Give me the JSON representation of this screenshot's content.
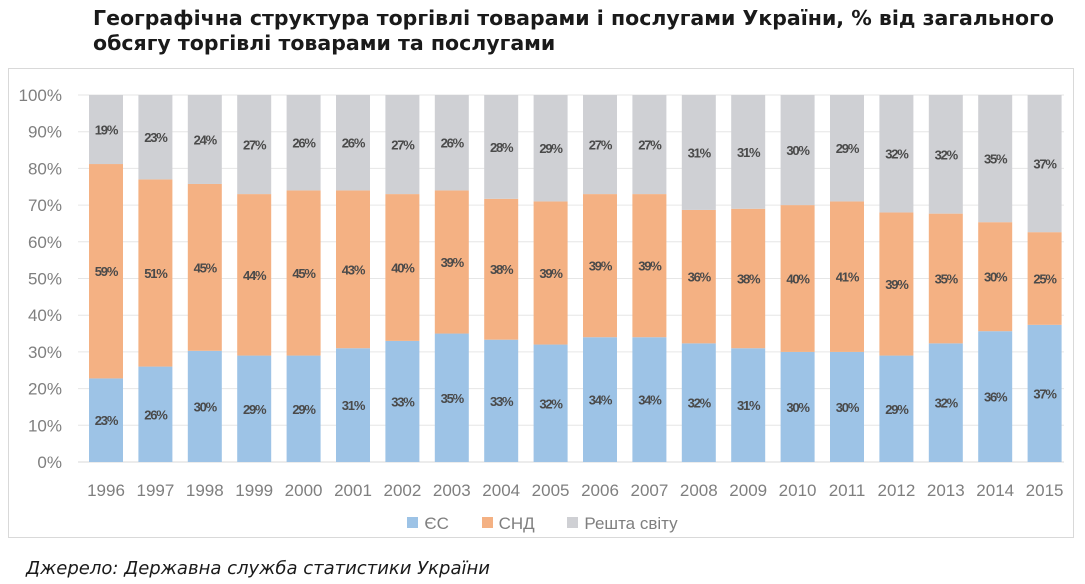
{
  "title": "Географічна структура торгівлі товарами і послугами України, % від загального обсягу торгівлі товарами та послугами",
  "source": "Джерело: Державна служба статистики України",
  "colors": {
    "eu": "#9dc3e6",
    "cis": "#f4b183",
    "rest": "#cfd0d4",
    "grid": "#e6e6e6",
    "axis_text": "#7f7f7f",
    "label_text": "#4a4a4a"
  },
  "chart_data": {
    "type": "bar",
    "stacked": true,
    "percent_stacked": true,
    "title": "Географічна структура торгівлі товарами і послугами України, % від загального обсягу торгівлі товарами та послугами",
    "xlabel": "",
    "ylabel": "",
    "ylim": [
      0,
      100
    ],
    "y_ticks": [
      "0%",
      "10%",
      "20%",
      "30%",
      "40%",
      "50%",
      "60%",
      "70%",
      "80%",
      "90%",
      "100%"
    ],
    "grid": true,
    "legend_position": "bottom",
    "categories": [
      "1996",
      "1997",
      "1998",
      "1999",
      "2000",
      "2001",
      "2002",
      "2003",
      "2004",
      "2005",
      "2006",
      "2007",
      "2008",
      "2009",
      "2010",
      "2011",
      "2012",
      "2013",
      "2014",
      "2015"
    ],
    "series": [
      {
        "name": "ЄС",
        "key": "eu",
        "values": [
          23,
          26,
          30,
          29,
          29,
          31,
          33,
          35,
          33,
          32,
          34,
          34,
          32,
          31,
          30,
          30,
          29,
          32,
          36,
          37
        ]
      },
      {
        "name": "СНД",
        "key": "cis",
        "values": [
          59,
          51,
          45,
          44,
          45,
          43,
          40,
          39,
          38,
          39,
          39,
          39,
          36,
          38,
          40,
          41,
          39,
          35,
          30,
          25
        ]
      },
      {
        "name": "Решта світу",
        "key": "rest",
        "values": [
          19,
          23,
          24,
          27,
          26,
          26,
          27,
          26,
          28,
          29,
          27,
          27,
          31,
          31,
          30,
          29,
          32,
          32,
          35,
          37
        ]
      }
    ]
  }
}
